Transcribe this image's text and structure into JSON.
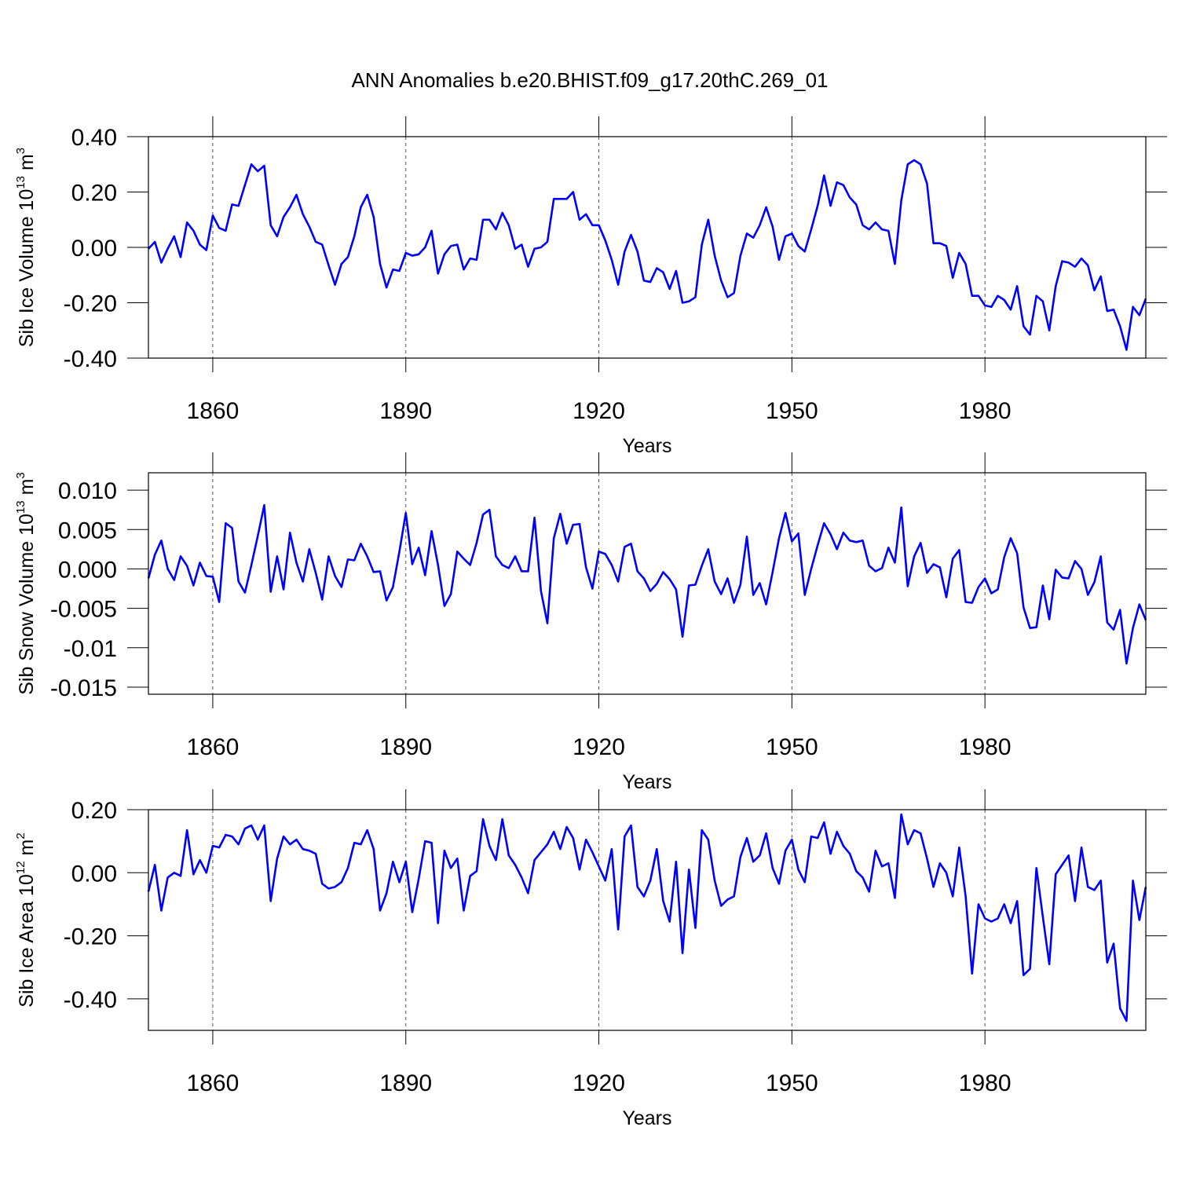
{
  "title": "ANN Anomalies b.e20.BHIST.f09_g17.20thC.269_01",
  "chart_data": [
    {
      "type": "line",
      "color": "#0000ff",
      "xlabel": "Years",
      "ylabel_parts": [
        "Sib Ice Volume 10",
        "13",
        " m",
        "3"
      ],
      "xlim": [
        1850,
        2005
      ],
      "xticks": [
        1860,
        1890,
        1920,
        1950,
        1980
      ],
      "grid_x": true,
      "ylim": [
        -0.4,
        0.4
      ],
      "yticks": [
        {
          "value": -0.4,
          "label": "-0.40"
        },
        {
          "value": -0.2,
          "label": "-0.20"
        },
        {
          "value": 0,
          "label": "0.00"
        },
        {
          "value": 0.2,
          "label": "0.20"
        },
        {
          "value": 0.4,
          "label": "0.40"
        }
      ],
      "x": [
        1850,
        1851,
        1852,
        1853,
        1854,
        1855,
        1856,
        1857,
        1858,
        1859,
        1860,
        1861,
        1862,
        1863,
        1864,
        1865,
        1866,
        1867,
        1868,
        1869,
        1870,
        1871,
        1872,
        1873,
        1874,
        1875,
        1876,
        1877,
        1878,
        1879,
        1880,
        1881,
        1882,
        1883,
        1884,
        1885,
        1886,
        1887,
        1888,
        1889,
        1890,
        1891,
        1892,
        1893,
        1894,
        1895,
        1896,
        1897,
        1898,
        1899,
        1900,
        1901,
        1902,
        1903,
        1904,
        1905,
        1906,
        1907,
        1908,
        1909,
        1910,
        1911,
        1912,
        1913,
        1914,
        1915,
        1916,
        1917,
        1918,
        1919,
        1920,
        1921,
        1922,
        1923,
        1924,
        1925,
        1926,
        1927,
        1928,
        1929,
        1930,
        1931,
        1932,
        1933,
        1934,
        1935,
        1936,
        1937,
        1938,
        1939,
        1940,
        1941,
        1942,
        1943,
        1944,
        1945,
        1946,
        1947,
        1948,
        1949,
        1950,
        1951,
        1952,
        1953,
        1954,
        1955,
        1956,
        1957,
        1958,
        1959,
        1960,
        1961,
        1962,
        1963,
        1964,
        1965,
        1966,
        1967,
        1968,
        1969,
        1970,
        1971,
        1972,
        1973,
        1974,
        1975,
        1976,
        1977,
        1978,
        1979,
        1980,
        1981,
        1982,
        1983,
        1984,
        1985,
        1986,
        1987,
        1988,
        1989,
        1990,
        1991,
        1992,
        1993,
        1994,
        1995,
        1996,
        1997,
        1998,
        1999,
        2000,
        2001,
        2002,
        2003,
        2004,
        2005
      ],
      "values": [
        -0.005,
        0.02,
        -0.055,
        -0.005,
        0.04,
        -0.035,
        0.09,
        0.06,
        0.01,
        -0.01,
        0.115,
        0.07,
        0.06,
        0.155,
        0.15,
        0.225,
        0.3,
        0.275,
        0.295,
        0.08,
        0.04,
        0.11,
        0.145,
        0.19,
        0.12,
        0.075,
        0.02,
        0.01,
        -0.065,
        -0.135,
        -0.06,
        -0.035,
        0.04,
        0.145,
        0.19,
        0.11,
        -0.06,
        -0.145,
        -0.08,
        -0.085,
        -0.02,
        -0.03,
        -0.025,
        0.0,
        0.06,
        -0.095,
        -0.025,
        0.005,
        0.01,
        -0.08,
        -0.04,
        -0.045,
        0.1,
        0.1,
        0.065,
        0.125,
        0.08,
        -0.005,
        0.01,
        -0.07,
        -0.005,
        0.0,
        0.02,
        0.175,
        0.175,
        0.175,
        0.2,
        0.1,
        0.12,
        0.08,
        0.08,
        0.025,
        -0.045,
        -0.135,
        -0.015,
        0.045,
        -0.015,
        -0.12,
        -0.125,
        -0.075,
        -0.09,
        -0.15,
        -0.085,
        -0.2,
        -0.195,
        -0.18,
        0.01,
        0.1,
        -0.03,
        -0.12,
        -0.18,
        -0.165,
        -0.03,
        0.05,
        0.035,
        0.08,
        0.145,
        0.075,
        -0.045,
        0.04,
        0.05,
        0.005,
        -0.015,
        0.065,
        0.15,
        0.26,
        0.15,
        0.235,
        0.225,
        0.18,
        0.155,
        0.08,
        0.065,
        0.09,
        0.065,
        0.06,
        -0.06,
        0.17,
        0.3,
        0.315,
        0.3,
        0.23,
        0.015,
        0.015,
        0.005,
        -0.11,
        -0.02,
        -0.06,
        -0.175,
        -0.175,
        -0.21,
        -0.215,
        -0.175,
        -0.19,
        -0.225,
        -0.14,
        -0.285,
        -0.315,
        -0.175,
        -0.195,
        -0.3,
        -0.14,
        -0.05,
        -0.055,
        -0.07,
        -0.04,
        -0.065,
        -0.155,
        -0.105,
        -0.23,
        -0.225,
        -0.285,
        -0.37,
        -0.215,
        -0.245,
        -0.185
      ]
    },
    {
      "type": "line",
      "color": "#0000ff",
      "xlabel": "Years",
      "ylabel_parts": [
        "Sib Snow Volume 10",
        "13",
        " m",
        "3"
      ],
      "xlim": [
        1850,
        2005
      ],
      "xticks": [
        1860,
        1890,
        1920,
        1950,
        1980
      ],
      "grid_x": true,
      "ylim": [
        -0.0159,
        0.0122
      ],
      "yticks": [
        -0.015,
        -0.01,
        -0.005,
        {
          "value": 0,
          "label": "0.000"
        },
        0.005,
        {
          "value": 0.01,
          "label": "0.010"
        }
      ],
      "x": [
        1850,
        1851,
        1852,
        1853,
        1854,
        1855,
        1856,
        1857,
        1858,
        1859,
        1860,
        1861,
        1862,
        1863,
        1864,
        1865,
        1866,
        1867,
        1868,
        1869,
        1870,
        1871,
        1872,
        1873,
        1874,
        1875,
        1876,
        1877,
        1878,
        1879,
        1880,
        1881,
        1882,
        1883,
        1884,
        1885,
        1886,
        1887,
        1888,
        1889,
        1890,
        1891,
        1892,
        1893,
        1894,
        1895,
        1896,
        1897,
        1898,
        1899,
        1900,
        1901,
        1902,
        1903,
        1904,
        1905,
        1906,
        1907,
        1908,
        1909,
        1910,
        1911,
        1912,
        1913,
        1914,
        1915,
        1916,
        1917,
        1918,
        1919,
        1920,
        1921,
        1922,
        1923,
        1924,
        1925,
        1926,
        1927,
        1928,
        1929,
        1930,
        1931,
        1932,
        1933,
        1934,
        1935,
        1936,
        1937,
        1938,
        1939,
        1940,
        1941,
        1942,
        1943,
        1944,
        1945,
        1946,
        1947,
        1948,
        1949,
        1950,
        1951,
        1952,
        1953,
        1954,
        1955,
        1956,
        1957,
        1958,
        1959,
        1960,
        1961,
        1962,
        1963,
        1964,
        1965,
        1966,
        1967,
        1968,
        1969,
        1970,
        1971,
        1972,
        1973,
        1974,
        1975,
        1976,
        1977,
        1978,
        1979,
        1980,
        1981,
        1982,
        1983,
        1984,
        1985,
        1986,
        1987,
        1988,
        1989,
        1990,
        1991,
        1992,
        1993,
        1994,
        1995,
        1996,
        1997,
        1998,
        1999,
        2000,
        2001,
        2002,
        2003,
        2004,
        2005
      ],
      "values": [
        -0.0012,
        0.0018,
        0.0036,
        0.0,
        -0.0014,
        0.0016,
        0.0004,
        -0.0021,
        0.0008,
        -0.0009,
        -0.001,
        -0.0042,
        0.0058,
        0.0052,
        -0.0016,
        -0.003,
        0.0005,
        0.0042,
        0.0081,
        -0.0029,
        0.0016,
        -0.0026,
        0.0046,
        0.0008,
        -0.0016,
        0.0025,
        -0.0005,
        -0.0039,
        0.0016,
        -0.0009,
        -0.0023,
        0.0012,
        0.0011,
        0.0032,
        0.0016,
        -0.0004,
        -0.0003,
        -0.004,
        -0.0023,
        0.0022,
        0.0071,
        0.0006,
        0.0027,
        -0.0008,
        0.0048,
        0.0005,
        -0.0047,
        -0.0032,
        0.0022,
        0.0013,
        0.0005,
        0.0033,
        0.0069,
        0.0075,
        0.0016,
        0.0005,
        0.0001,
        0.0016,
        -0.0003,
        -0.0003,
        0.0065,
        -0.0028,
        -0.0069,
        0.0039,
        0.007,
        0.0032,
        0.0056,
        0.0057,
        0.0002,
        -0.0025,
        0.0022,
        0.0019,
        0.0005,
        -0.0016,
        0.0028,
        0.0032,
        -0.0003,
        -0.0012,
        -0.0028,
        -0.0019,
        -0.0004,
        -0.0013,
        -0.0026,
        -0.0086,
        -0.0021,
        -0.002,
        0.0004,
        0.0025,
        -0.0016,
        -0.0032,
        -0.0012,
        -0.0043,
        -0.002,
        0.0041,
        -0.0033,
        -0.0018,
        -0.0045,
        -0.0004,
        0.0039,
        0.0071,
        0.0035,
        0.0045,
        -0.0033,
        0.0,
        0.003,
        0.0058,
        0.0044,
        0.0025,
        0.0046,
        0.0036,
        0.0034,
        0.0036,
        0.0004,
        -0.0003,
        0.0001,
        0.0027,
        0.0008,
        0.0078,
        -0.0022,
        0.0016,
        0.0033,
        -0.0005,
        0.0006,
        0.0002,
        -0.0036,
        0.0013,
        0.0024,
        -0.0042,
        -0.0043,
        -0.0023,
        -0.0012,
        -0.0031,
        -0.0026,
        0.0015,
        0.0039,
        0.002,
        -0.0049,
        -0.0075,
        -0.0074,
        -0.0021,
        -0.0064,
        -0.0001,
        -0.0011,
        -0.0012,
        0.001,
        0.0,
        -0.0033,
        -0.0017,
        0.0016,
        -0.0068,
        -0.0077,
        -0.0052,
        -0.012,
        -0.0075,
        -0.0045,
        -0.0065
      ]
    },
    {
      "type": "line",
      "color": "#0000ff",
      "xlabel": "Years",
      "ylabel_parts": [
        "Sib Ice Area 10",
        "12",
        " m",
        "2"
      ],
      "xlim": [
        1850,
        2005
      ],
      "xticks": [
        1860,
        1890,
        1920,
        1950,
        1980
      ],
      "grid_x": true,
      "ylim": [
        -0.5,
        0.2
      ],
      "yticks": [
        {
          "value": -0.4,
          "label": "-0.40"
        },
        {
          "value": -0.2,
          "label": "-0.20"
        },
        {
          "value": 0,
          "label": "0.00"
        },
        {
          "value": 0.2,
          "label": "0.20"
        }
      ],
      "x": [
        1850,
        1851,
        1852,
        1853,
        1854,
        1855,
        1856,
        1857,
        1858,
        1859,
        1860,
        1861,
        1862,
        1863,
        1864,
        1865,
        1866,
        1867,
        1868,
        1869,
        1870,
        1871,
        1872,
        1873,
        1874,
        1875,
        1876,
        1877,
        1878,
        1879,
        1880,
        1881,
        1882,
        1883,
        1884,
        1885,
        1886,
        1887,
        1888,
        1889,
        1890,
        1891,
        1892,
        1893,
        1894,
        1895,
        1896,
        1897,
        1898,
        1899,
        1900,
        1901,
        1902,
        1903,
        1904,
        1905,
        1906,
        1907,
        1908,
        1909,
        1910,
        1911,
        1912,
        1913,
        1914,
        1915,
        1916,
        1917,
        1918,
        1919,
        1920,
        1921,
        1922,
        1923,
        1924,
        1925,
        1926,
        1927,
        1928,
        1929,
        1930,
        1931,
        1932,
        1933,
        1934,
        1935,
        1936,
        1937,
        1938,
        1939,
        1940,
        1941,
        1942,
        1943,
        1944,
        1945,
        1946,
        1947,
        1948,
        1949,
        1950,
        1951,
        1952,
        1953,
        1954,
        1955,
        1956,
        1957,
        1958,
        1959,
        1960,
        1961,
        1962,
        1963,
        1964,
        1965,
        1966,
        1967,
        1968,
        1969,
        1970,
        1971,
        1972,
        1973,
        1974,
        1975,
        1976,
        1977,
        1978,
        1979,
        1980,
        1981,
        1982,
        1983,
        1984,
        1985,
        1986,
        1987,
        1988,
        1989,
        1990,
        1991,
        1992,
        1993,
        1994,
        1995,
        1996,
        1997,
        1998,
        1999,
        2000,
        2001,
        2002,
        2003,
        2004,
        2005
      ],
      "values": [
        -0.06,
        0.025,
        -0.12,
        -0.015,
        0.0,
        -0.01,
        0.135,
        -0.005,
        0.04,
        0.0,
        0.085,
        0.08,
        0.12,
        0.115,
        0.09,
        0.14,
        0.15,
        0.105,
        0.15,
        -0.09,
        0.045,
        0.115,
        0.09,
        0.105,
        0.075,
        0.07,
        0.06,
        -0.035,
        -0.05,
        -0.045,
        -0.03,
        0.015,
        0.095,
        0.09,
        0.135,
        0.075,
        -0.12,
        -0.065,
        0.035,
        -0.03,
        0.035,
        -0.125,
        -0.02,
        0.1,
        0.095,
        -0.16,
        0.07,
        0.015,
        0.045,
        -0.12,
        -0.01,
        0.005,
        0.17,
        0.085,
        0.04,
        0.17,
        0.055,
        0.025,
        -0.015,
        -0.065,
        0.04,
        0.065,
        0.09,
        0.13,
        0.075,
        0.145,
        0.11,
        0.01,
        0.105,
        0.065,
        0.02,
        -0.025,
        0.075,
        -0.18,
        0.115,
        0.15,
        -0.045,
        -0.075,
        -0.025,
        0.075,
        -0.09,
        -0.155,
        0.035,
        -0.255,
        0.01,
        -0.175,
        0.135,
        0.105,
        -0.025,
        -0.105,
        -0.085,
        -0.075,
        0.05,
        0.11,
        0.035,
        0.055,
        0.125,
        0.015,
        -0.035,
        0.07,
        0.105,
        0.01,
        -0.03,
        0.115,
        0.11,
        0.16,
        0.06,
        0.13,
        0.085,
        0.06,
        0.005,
        -0.015,
        -0.06,
        0.07,
        0.02,
        0.03,
        -0.08,
        0.185,
        0.09,
        0.135,
        0.125,
        0.045,
        -0.045,
        0.03,
        0.0,
        -0.075,
        0.08,
        -0.075,
        -0.32,
        -0.1,
        -0.145,
        -0.155,
        -0.145,
        -0.1,
        -0.16,
        -0.09,
        -0.325,
        -0.305,
        0.015,
        -0.14,
        -0.29,
        -0.005,
        0.025,
        0.055,
        -0.09,
        0.08,
        -0.045,
        -0.055,
        -0.025,
        -0.285,
        -0.225,
        -0.43,
        -0.47,
        -0.025,
        -0.15,
        -0.045
      ]
    }
  ]
}
